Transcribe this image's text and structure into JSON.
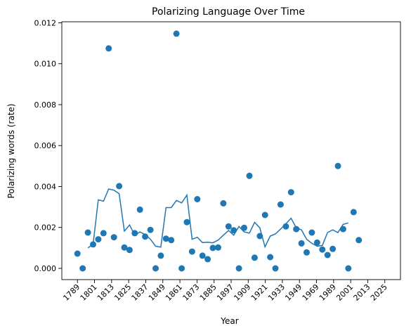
{
  "chart_data": {
    "type": "scatter",
    "title": "Polarizing Language Over Time",
    "xlabel": "Year",
    "ylabel": "Polarizing words (rate)",
    "ylim": [
      -0.00055,
      0.01205
    ],
    "yticks": [
      0.0,
      0.002,
      0.004,
      0.006,
      0.008,
      0.01,
      0.012
    ],
    "ytick_labels": [
      "0.000",
      "0.002",
      "0.004",
      "0.006",
      "0.008",
      "0.010",
      "0.012"
    ],
    "xtick_labels": [
      "1789",
      "1801",
      "1813",
      "1825",
      "1837",
      "1849",
      "1861",
      "1873",
      "1885",
      "1897",
      "1909",
      "1921",
      "1933",
      "1949",
      "1969",
      "1989",
      "2001",
      "2013",
      "2025"
    ],
    "grid": false,
    "color": "#1f77b4",
    "series": [
      {
        "kind": "scatter",
        "points": [
          [
            "1789",
            0.00072
          ],
          [
            "1793",
            0.0
          ],
          [
            "1797",
            0.00175
          ],
          [
            "1801",
            0.00117
          ],
          [
            "1805",
            0.00142
          ],
          [
            "1809",
            0.00172
          ],
          [
            "1813",
            0.01075
          ],
          [
            "1817",
            0.00152
          ],
          [
            "1821",
            0.00402
          ],
          [
            "1825",
            0.00102
          ],
          [
            "1829",
            0.0009
          ],
          [
            "1833",
            0.00172
          ],
          [
            "1837",
            0.00287
          ],
          [
            "1841",
            0.00155
          ],
          [
            "1845",
            0.00188
          ],
          [
            "1849",
            0.0
          ],
          [
            "1853",
            0.00062
          ],
          [
            "1857",
            0.00145
          ],
          [
            "1861",
            0.00138
          ],
          [
            "1865",
            0.01147
          ],
          [
            "1869",
            0.0
          ],
          [
            "1873",
            0.00226
          ],
          [
            "1877",
            0.00082
          ],
          [
            "1881",
            0.00338
          ],
          [
            "1885",
            0.00062
          ],
          [
            "1889",
            0.00045
          ],
          [
            "1893",
            0.001
          ],
          [
            "1897",
            0.00102
          ],
          [
            "1901",
            0.00318
          ],
          [
            "1905",
            0.00205
          ],
          [
            "1909",
            0.00186
          ],
          [
            "1913",
            0.0
          ],
          [
            "1917",
            0.00198
          ],
          [
            "1921",
            0.00452
          ],
          [
            "1925",
            0.00052
          ],
          [
            "1929",
            0.00158
          ],
          [
            "1933",
            0.00261
          ],
          [
            "1937",
            0.00055
          ],
          [
            "1941",
            0.0
          ],
          [
            "1945",
            0.00312
          ],
          [
            "1949",
            0.00205
          ],
          [
            "1953",
            0.00372
          ],
          [
            "1957",
            0.00192
          ],
          [
            "1961",
            0.00122
          ],
          [
            "1965",
            0.00078
          ],
          [
            "1969",
            0.00175
          ],
          [
            "1973",
            0.00126
          ],
          [
            "1977",
            0.00092
          ],
          [
            "1981",
            0.00065
          ],
          [
            "1985",
            0.00095
          ],
          [
            "1989",
            0.005
          ],
          [
            "1993",
            0.00192
          ],
          [
            "1997",
            0.0
          ],
          [
            "2001",
            0.00275
          ],
          [
            "2005",
            0.00138
          ]
        ]
      },
      {
        "kind": "line",
        "points": [
          [
            "1797",
            0.001
          ],
          [
            "1801",
            0.00118
          ],
          [
            "1805",
            0.00335
          ],
          [
            "1809",
            0.00328
          ],
          [
            "1813",
            0.00388
          ],
          [
            "1817",
            0.00382
          ],
          [
            "1821",
            0.00365
          ],
          [
            "1825",
            0.00182
          ],
          [
            "1829",
            0.00212
          ],
          [
            "1833",
            0.00162
          ],
          [
            "1837",
            0.00178
          ],
          [
            "1841",
            0.00165
          ],
          [
            "1845",
            0.00142
          ],
          [
            "1849",
            0.00108
          ],
          [
            "1853",
            0.00104
          ],
          [
            "1857",
            0.00297
          ],
          [
            "1861",
            0.00297
          ],
          [
            "1865",
            0.00332
          ],
          [
            "1869",
            0.0032
          ],
          [
            "1873",
            0.00358
          ],
          [
            "1877",
            0.00142
          ],
          [
            "1881",
            0.00152
          ],
          [
            "1885",
            0.00126
          ],
          [
            "1889",
            0.00128
          ],
          [
            "1893",
            0.00125
          ],
          [
            "1897",
            0.00138
          ],
          [
            "1901",
            0.00162
          ],
          [
            "1905",
            0.00185
          ],
          [
            "1909",
            0.00162
          ],
          [
            "1913",
            0.00205
          ],
          [
            "1917",
            0.00178
          ],
          [
            "1921",
            0.00172
          ],
          [
            "1925",
            0.00225
          ],
          [
            "1929",
            0.00198
          ],
          [
            "1933",
            0.00105
          ],
          [
            "1937",
            0.00158
          ],
          [
            "1941",
            0.00168
          ],
          [
            "1945",
            0.00192
          ],
          [
            "1949",
            0.00218
          ],
          [
            "1953",
            0.00245
          ],
          [
            "1957",
            0.00198
          ],
          [
            "1961",
            0.00188
          ],
          [
            "1965",
            0.00142
          ],
          [
            "1969",
            0.00122
          ],
          [
            "1973",
            0.00108
          ],
          [
            "1977",
            0.00112
          ],
          [
            "1981",
            0.00175
          ],
          [
            "1985",
            0.00188
          ],
          [
            "1989",
            0.00175
          ],
          [
            "1993",
            0.00215
          ],
          [
            "1997",
            0.00222
          ]
        ]
      }
    ]
  }
}
